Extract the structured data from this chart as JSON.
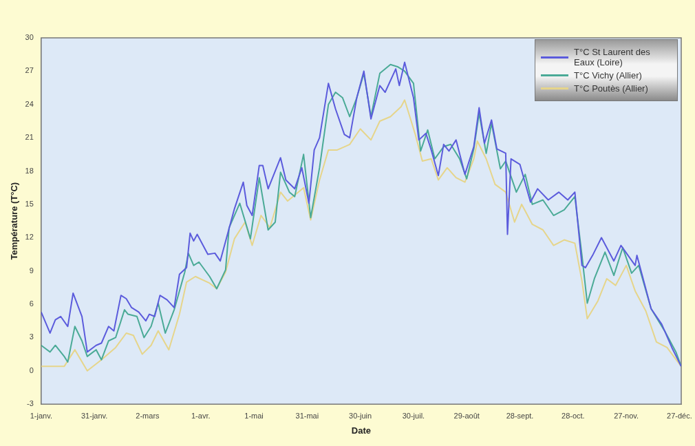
{
  "chart_data": {
    "type": "line",
    "xlabel": "Date",
    "ylabel": "Température (T°C)",
    "xlim": [
      "--01-01",
      "--12-28"
    ],
    "ylim": [
      -3,
      30
    ],
    "xticks": [
      {
        "value": "--01-01",
        "label": "1-janv."
      },
      {
        "value": "--01-31",
        "label": "31-janv."
      },
      {
        "value": "--03-02",
        "label": "2-mars"
      },
      {
        "value": "--04-01",
        "label": "1-avr."
      },
      {
        "value": "--05-01",
        "label": "1-mai"
      },
      {
        "value": "--05-31",
        "label": "31-mai"
      },
      {
        "value": "--06-30",
        "label": "30-juin"
      },
      {
        "value": "--07-30",
        "label": "30-juil."
      },
      {
        "value": "--08-29",
        "label": "29-août"
      },
      {
        "value": "--09-28",
        "label": "28-sept."
      },
      {
        "value": "--10-28",
        "label": "28-oct."
      },
      {
        "value": "--11-27",
        "label": "27-nov."
      },
      {
        "value": "--12-27",
        "label": "27-déc."
      }
    ],
    "yticks": [
      -3,
      0,
      3,
      6,
      9,
      12,
      15,
      18,
      21,
      24,
      27,
      30
    ],
    "legend": "top right",
    "marker": "none",
    "series": [
      {
        "name": "T°C St Laurent des Eaux (Loire)",
        "color": "#5b5bdc",
        "x": [
          "--01-01",
          "--01-06",
          "--01-09",
          "--01-12",
          "--01-16",
          "--01-19",
          "--01-24",
          "--01-27",
          "--02-01",
          "--02-04",
          "--02-08",
          "--02-11",
          "--02-15",
          "--02-18",
          "--02-21",
          "--02-25",
          "--03-01",
          "--03-03",
          "--03-06",
          "--03-09",
          "--03-13",
          "--03-17",
          "--03-20",
          "--03-24",
          "--03-26",
          "--03-28",
          "--03-30",
          "--04-05",
          "--04-09",
          "--04-12",
          "--04-20",
          "--04-25",
          "--04-27",
          "--04-30",
          "--05-04",
          "--05-06",
          "--05-09",
          "--05-16",
          "--05-19",
          "--05-24",
          "--05-28",
          "--06-01",
          "--06-04",
          "--06-07",
          "--06-12",
          "--06-16",
          "--06-21",
          "--06-24",
          "--06-28",
          "--07-02",
          "--07-06",
          "--07-11",
          "--07-14",
          "--07-20",
          "--07-22",
          "--07-25",
          "--07-30",
          "--08-02",
          "--08-06",
          "--08-09",
          "--08-13",
          "--08-16",
          "--08-19",
          "--08-23",
          "--08-28",
          "--09-02",
          "--09-05",
          "--09-08",
          "--09-12",
          "--09-15",
          "--09-20",
          "--09-21",
          "--09-23",
          "--09-28",
          "--10-04",
          "--10-08",
          "--10-14",
          "--10-20",
          "--10-25",
          "--10-29",
          "--11-02",
          "--11-04",
          "--11-08",
          "--11-13",
          "--11-20",
          "--11-24",
          "--12-02",
          "--12-03",
          "--12-11",
          "--12-17",
          "--12-23",
          "--12-28"
        ],
        "values": [
          5.3,
          3.4,
          4.6,
          4.9,
          4.0,
          7.0,
          4.9,
          1.7,
          2.3,
          2.5,
          4.0,
          3.6,
          6.8,
          6.5,
          5.7,
          5.3,
          4.5,
          5.1,
          4.9,
          6.8,
          6.4,
          5.7,
          8.7,
          9.3,
          12.4,
          11.7,
          12.3,
          10.5,
          10.6,
          9.9,
          14.6,
          17.0,
          14.9,
          14.0,
          18.5,
          18.5,
          16.4,
          19.2,
          17.2,
          16.4,
          18.3,
          15.1,
          19.9,
          21.0,
          25.9,
          23.6,
          21.3,
          21.0,
          24.6,
          27.0,
          22.7,
          25.7,
          25.1,
          27.2,
          25.7,
          27.8,
          24.6,
          20.8,
          21.4,
          19.9,
          17.6,
          20.4,
          19.8,
          20.8,
          17.7,
          20.2,
          23.7,
          20.5,
          22.6,
          20.0,
          19.6,
          12.3,
          19.1,
          18.6,
          15.2,
          16.4,
          15.4,
          16.1,
          15.4,
          16.1,
          9.5,
          9.3,
          10.4,
          12.0,
          9.9,
          11.3,
          9.5,
          10.4,
          5.6,
          4.2,
          2.0,
          0.4
        ]
      },
      {
        "name": "T°C Vichy (Allier)",
        "color": "#4aaa96",
        "x": [
          "--01-01",
          "--01-06",
          "--01-09",
          "--01-14",
          "--01-16",
          "--01-20",
          "--01-24",
          "--01-27",
          "--02-01",
          "--02-04",
          "--02-08",
          "--02-12",
          "--02-17",
          "--02-19",
          "--02-24",
          "--02-28",
          "--03-04",
          "--03-08",
          "--03-12",
          "--03-17",
          "--03-23",
          "--03-25",
          "--03-28",
          "--03-31",
          "--04-06",
          "--04-10",
          "--04-15",
          "--04-17",
          "--04-23",
          "--04-29",
          "--05-04",
          "--05-09",
          "--05-13",
          "--05-16",
          "--05-21",
          "--05-24",
          "--05-29",
          "--06-02",
          "--06-07",
          "--06-12",
          "--06-16",
          "--06-20",
          "--06-24",
          "--06-28",
          "--07-02",
          "--07-06",
          "--07-11",
          "--07-17",
          "--07-21",
          "--07-25",
          "--07-30",
          "--08-03",
          "--08-07",
          "--08-11",
          "--08-16",
          "--08-20",
          "--08-25",
          "--08-29",
          "--09-02",
          "--09-05",
          "--09-09",
          "--09-12",
          "--09-17",
          "--09-20",
          "--09-26",
          "--10-01",
          "--10-05",
          "--10-11",
          "--10-17",
          "--10-23",
          "--10-29",
          "--11-02",
          "--11-05",
          "--11-09",
          "--11-15",
          "--11-20",
          "--11-25",
          "--11-30",
          "--12-04",
          "--12-11",
          "--12-19",
          "--12-25",
          "--12-28"
        ],
        "values": [
          2.3,
          1.7,
          2.3,
          1.3,
          0.8,
          4.0,
          2.7,
          1.3,
          1.9,
          1.0,
          2.7,
          3.0,
          5.5,
          5.1,
          4.9,
          3.0,
          4.0,
          6.1,
          3.4,
          5.5,
          8.9,
          10.6,
          9.5,
          9.8,
          8.5,
          7.4,
          9.1,
          12.9,
          15.1,
          11.9,
          17.4,
          12.7,
          13.4,
          17.9,
          16.1,
          15.7,
          19.5,
          13.8,
          18.3,
          24.0,
          25.1,
          24.6,
          22.9,
          24.6,
          26.8,
          22.9,
          26.8,
          27.6,
          27.4,
          27.0,
          25.9,
          19.8,
          21.7,
          19.1,
          20.2,
          20.4,
          19.1,
          17.3,
          20.0,
          23.2,
          19.6,
          22.3,
          18.2,
          18.9,
          16.1,
          17.7,
          15.0,
          15.4,
          14.0,
          14.5,
          15.7,
          10.4,
          6.1,
          8.3,
          10.7,
          8.6,
          11.1,
          8.8,
          9.5,
          5.6,
          3.5,
          1.7,
          0.4
        ]
      },
      {
        "name": "T°C Poutès (Allier)",
        "color": "#e6d58a",
        "x": [
          "--01-01",
          "--01-08",
          "--01-14",
          "--01-20",
          "--01-27",
          "--02-04",
          "--02-12",
          "--02-18",
          "--02-22",
          "--02-27",
          "--03-04",
          "--03-08",
          "--03-14",
          "--03-20",
          "--03-24",
          "--03-29",
          "--04-06",
          "--04-10",
          "--04-15",
          "--04-20",
          "--04-26",
          "--04-30",
          "--05-05",
          "--05-10",
          "--05-16",
          "--05-20",
          "--05-26",
          "--05-29",
          "--06-02",
          "--06-07",
          "--06-12",
          "--06-17",
          "--06-24",
          "--06-30",
          "--07-06",
          "--07-11",
          "--07-17",
          "--07-23",
          "--07-25",
          "--07-31",
          "--08-04",
          "--08-09",
          "--08-13",
          "--08-18",
          "--08-23",
          "--08-28",
          "--09-02",
          "--09-04",
          "--09-09",
          "--09-14",
          "--09-20",
          "--09-25",
          "--09-29",
          "--10-05",
          "--10-11",
          "--10-17",
          "--10-23",
          "--10-29",
          "--11-02",
          "--11-05",
          "--11-11",
          "--11-16",
          "--11-21",
          "--11-27",
          "--12-02",
          "--12-08",
          "--12-14",
          "--12-20",
          "--12-28"
        ],
        "values": [
          0.4,
          0.4,
          0.4,
          1.9,
          0.0,
          1.0,
          2.1,
          3.4,
          3.2,
          1.5,
          2.3,
          3.6,
          1.9,
          5.1,
          8.0,
          8.5,
          7.9,
          7.4,
          8.9,
          11.9,
          13.4,
          11.3,
          14.0,
          12.9,
          16.1,
          15.3,
          16.1,
          16.5,
          13.6,
          17.2,
          19.9,
          19.9,
          20.4,
          21.8,
          20.8,
          22.5,
          22.9,
          23.8,
          24.4,
          21.3,
          18.9,
          19.1,
          17.2,
          18.3,
          17.4,
          17.0,
          19.1,
          20.7,
          19.1,
          16.8,
          16.1,
          13.4,
          15.0,
          13.2,
          12.7,
          11.3,
          11.8,
          11.5,
          8.1,
          4.7,
          6.3,
          8.3,
          7.7,
          9.5,
          7.2,
          5.4,
          2.6,
          2.1,
          0.4
        ]
      }
    ]
  }
}
